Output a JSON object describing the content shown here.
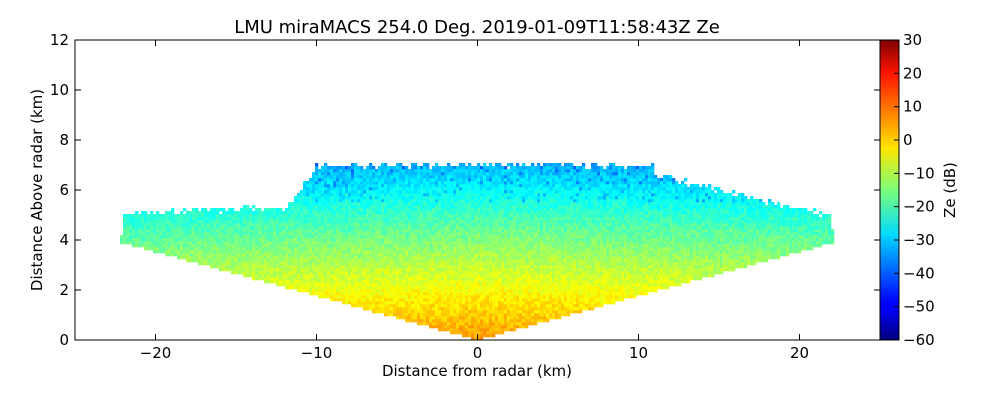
{
  "chart_data": {
    "type": "heatmap",
    "title": "LMU miraMACS 254.0 Deg. 2019-01-09T11:58:43Z  Ze",
    "xlabel": "Distance from radar (km)",
    "ylabel": "Distance Above radar  (km)",
    "xlim": [
      -25,
      25
    ],
    "ylim": [
      0,
      12
    ],
    "x_ticks": [
      -20,
      -10,
      0,
      10,
      20
    ],
    "x_tick_labels": [
      "−20",
      "−10",
      "0",
      "10",
      "20"
    ],
    "y_ticks": [
      0,
      2,
      4,
      6,
      8,
      10,
      12
    ],
    "y_tick_labels": [
      "0",
      "2",
      "4",
      "6",
      "8",
      "10",
      "12"
    ],
    "colorbar": {
      "label": "Ze (dB)",
      "range": [
        -60,
        30
      ],
      "ticks": [
        30,
        20,
        10,
        0,
        -10,
        -20,
        -30,
        -40,
        -50,
        -60
      ],
      "tick_labels": [
        "30",
        "20",
        "10",
        "0",
        "−10",
        "−20",
        "−30",
        "−40",
        "−50",
        "−60"
      ],
      "colormap": "jet"
    },
    "scan": {
      "azimuth_deg": 254.0,
      "elevation_min_deg": 10,
      "elevation_max_deg": 170,
      "max_range_km": 22.5,
      "echo_top_km": 7.0,
      "surface_ze_db": 5,
      "top_ze_db": -32
    }
  }
}
